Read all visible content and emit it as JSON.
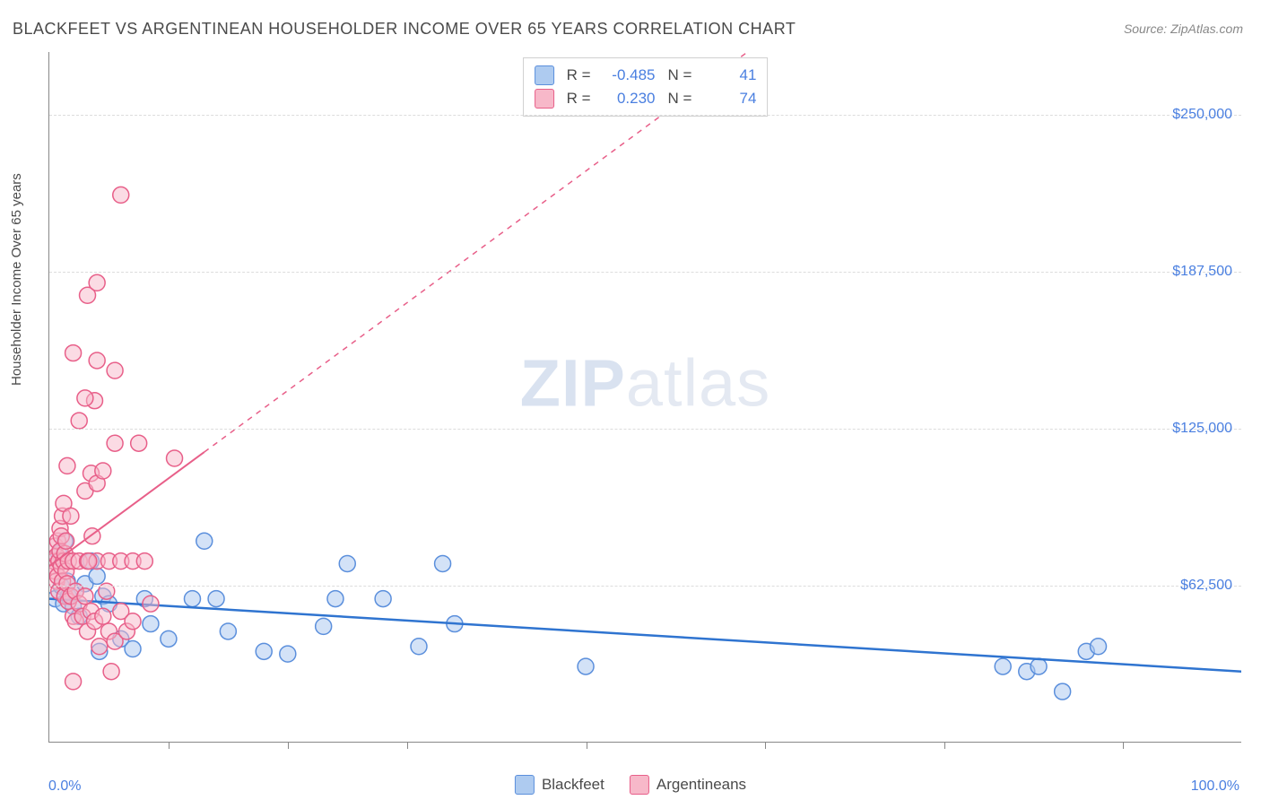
{
  "title": "BLACKFEET VS ARGENTINEAN HOUSEHOLDER INCOME OVER 65 YEARS CORRELATION CHART",
  "source": "Source: ZipAtlas.com",
  "ylabel": "Householder Income Over 65 years",
  "watermark_a": "ZIP",
  "watermark_b": "atlas",
  "chart": {
    "type": "scatter",
    "xlim": [
      0,
      100
    ],
    "ylim": [
      0,
      275000
    ],
    "x_axis_min_label": "0.0%",
    "x_axis_max_label": "100.0%",
    "ytick_values": [
      62500,
      125000,
      187500,
      250000
    ],
    "ytick_labels": [
      "$62,500",
      "$125,000",
      "$187,500",
      "$250,000"
    ],
    "xtick_positions": [
      10,
      20,
      30,
      45,
      60,
      75,
      90
    ],
    "background_color": "#ffffff",
    "grid_color": "#dcdcdc",
    "border_color": "#888888",
    "marker_radius": 9,
    "marker_stroke_width": 1.5,
    "series": [
      {
        "name": "Blackfeet",
        "fill": "#aecbf0",
        "stroke": "#5b8fdc",
        "fill_opacity": 0.55,
        "R": "-0.485",
        "N": "41",
        "regression": {
          "x1": 0,
          "y1": 57000,
          "x2": 100,
          "y2": 28000,
          "solid_end_x": 100,
          "color": "#2f74d0",
          "width": 2.5
        },
        "points": [
          [
            0.5,
            57000
          ],
          [
            0.8,
            75000
          ],
          [
            1.0,
            62000
          ],
          [
            1.2,
            55000
          ],
          [
            1.5,
            64000
          ],
          [
            1.3,
            80000
          ],
          [
            1.6,
            58000
          ],
          [
            2.0,
            54000
          ],
          [
            2.2,
            60000
          ],
          [
            2.5,
            50000
          ],
          [
            3.0,
            63000
          ],
          [
            3.5,
            72000
          ],
          [
            4.0,
            66000
          ],
          [
            4.2,
            36000
          ],
          [
            4.5,
            58000
          ],
          [
            5.0,
            55000
          ],
          [
            6.0,
            41000
          ],
          [
            7.0,
            37000
          ],
          [
            8.0,
            57000
          ],
          [
            8.5,
            47000
          ],
          [
            10,
            41000
          ],
          [
            12,
            57000
          ],
          [
            13,
            80000
          ],
          [
            14,
            57000
          ],
          [
            15,
            44000
          ],
          [
            18,
            36000
          ],
          [
            20,
            35000
          ],
          [
            23,
            46000
          ],
          [
            24,
            57000
          ],
          [
            25,
            71000
          ],
          [
            28,
            57000
          ],
          [
            31,
            38000
          ],
          [
            33,
            71000
          ],
          [
            34,
            47000
          ],
          [
            45,
            30000
          ],
          [
            80,
            30000
          ],
          [
            82,
            28000
          ],
          [
            85,
            20000
          ],
          [
            87,
            36000
          ],
          [
            88,
            38000
          ],
          [
            83,
            30000
          ]
        ]
      },
      {
        "name": "Argentineans",
        "fill": "#f7b8c9",
        "stroke": "#e85f89",
        "fill_opacity": 0.5,
        "R": "0.230",
        "N": "74",
        "regression": {
          "x1": 0,
          "y1": 70000,
          "x2": 60,
          "y2": 280000,
          "solid_end_x": 13,
          "color": "#e85f89",
          "width": 2
        },
        "points": [
          [
            0.3,
            70000
          ],
          [
            0.4,
            72000
          ],
          [
            0.5,
            68000
          ],
          [
            0.5,
            78000
          ],
          [
            0.6,
            64000
          ],
          [
            0.6,
            74000
          ],
          [
            0.7,
            80000
          ],
          [
            0.7,
            66000
          ],
          [
            0.8,
            72000
          ],
          [
            0.8,
            60000
          ],
          [
            0.9,
            85000
          ],
          [
            0.9,
            76000
          ],
          [
            1.0,
            70000
          ],
          [
            1.0,
            82000
          ],
          [
            1.1,
            90000
          ],
          [
            1.1,
            64000
          ],
          [
            1.2,
            95000
          ],
          [
            1.2,
            72000
          ],
          [
            1.3,
            75000
          ],
          [
            1.3,
            58000
          ],
          [
            1.4,
            68000
          ],
          [
            1.4,
            80000
          ],
          [
            1.5,
            110000
          ],
          [
            1.5,
            63000
          ],
          [
            1.6,
            72000
          ],
          [
            1.6,
            56000
          ],
          [
            1.8,
            58000
          ],
          [
            1.8,
            90000
          ],
          [
            2.0,
            50000
          ],
          [
            2.0,
            72000
          ],
          [
            2.2,
            60000
          ],
          [
            2.2,
            48000
          ],
          [
            2.5,
            55000
          ],
          [
            2.5,
            72000
          ],
          [
            2.8,
            50000
          ],
          [
            3.0,
            100000
          ],
          [
            3.0,
            58000
          ],
          [
            3.2,
            44000
          ],
          [
            3.2,
            72000
          ],
          [
            3.5,
            107000
          ],
          [
            3.5,
            52000
          ],
          [
            3.8,
            48000
          ],
          [
            4.0,
            103000
          ],
          [
            4.0,
            72000
          ],
          [
            4.2,
            38000
          ],
          [
            4.5,
            50000
          ],
          [
            4.5,
            108000
          ],
          [
            5.0,
            44000
          ],
          [
            5.0,
            72000
          ],
          [
            5.5,
            40000
          ],
          [
            5.5,
            119000
          ],
          [
            6.0,
            52000
          ],
          [
            6.0,
            72000
          ],
          [
            6.5,
            44000
          ],
          [
            7.0,
            48000
          ],
          [
            7.0,
            72000
          ],
          [
            7.5,
            119000
          ],
          [
            2.5,
            128000
          ],
          [
            3.8,
            136000
          ],
          [
            3.0,
            137000
          ],
          [
            2.0,
            155000
          ],
          [
            4.0,
            152000
          ],
          [
            5.5,
            148000
          ],
          [
            3.2,
            178000
          ],
          [
            4.0,
            183000
          ],
          [
            6.0,
            218000
          ],
          [
            3.3,
            72000
          ],
          [
            3.6,
            82000
          ],
          [
            4.8,
            60000
          ],
          [
            5.2,
            28000
          ],
          [
            10.5,
            113000
          ],
          [
            8.0,
            72000
          ],
          [
            8.5,
            55000
          ],
          [
            2.0,
            24000
          ]
        ]
      }
    ]
  },
  "legend_bottom": {
    "items": [
      "Blackfeet",
      "Argentineans"
    ]
  }
}
